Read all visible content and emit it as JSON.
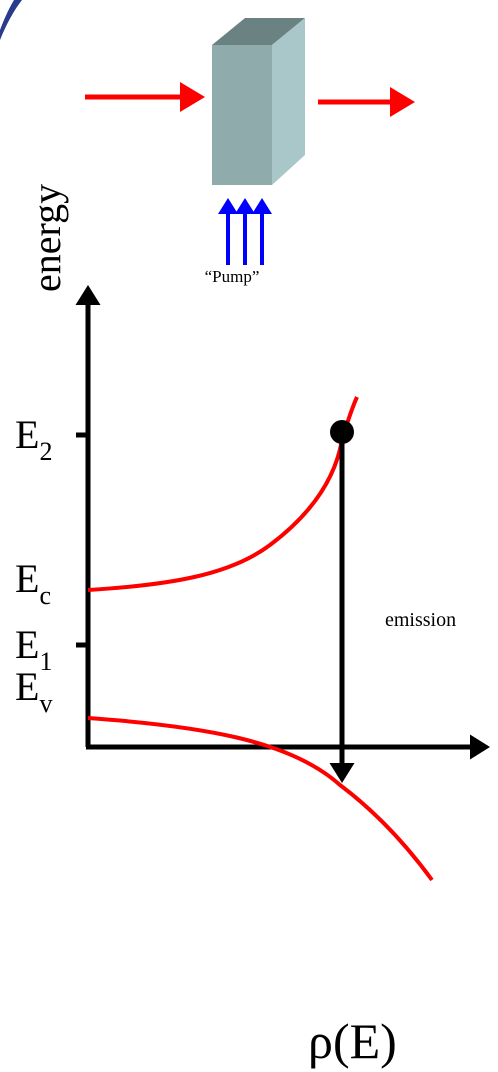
{
  "pump_label": "“Pump”",
  "axis": {
    "y_label": "energy",
    "x_label": "ρ(E)"
  },
  "levels": [
    {
      "main": "E",
      "sub": "2"
    },
    {
      "main": "E",
      "sub": "c"
    },
    {
      "main": "E",
      "sub": "v"
    },
    {
      "main": "E",
      "sub": "1"
    }
  ],
  "transition_label": "emission"
}
